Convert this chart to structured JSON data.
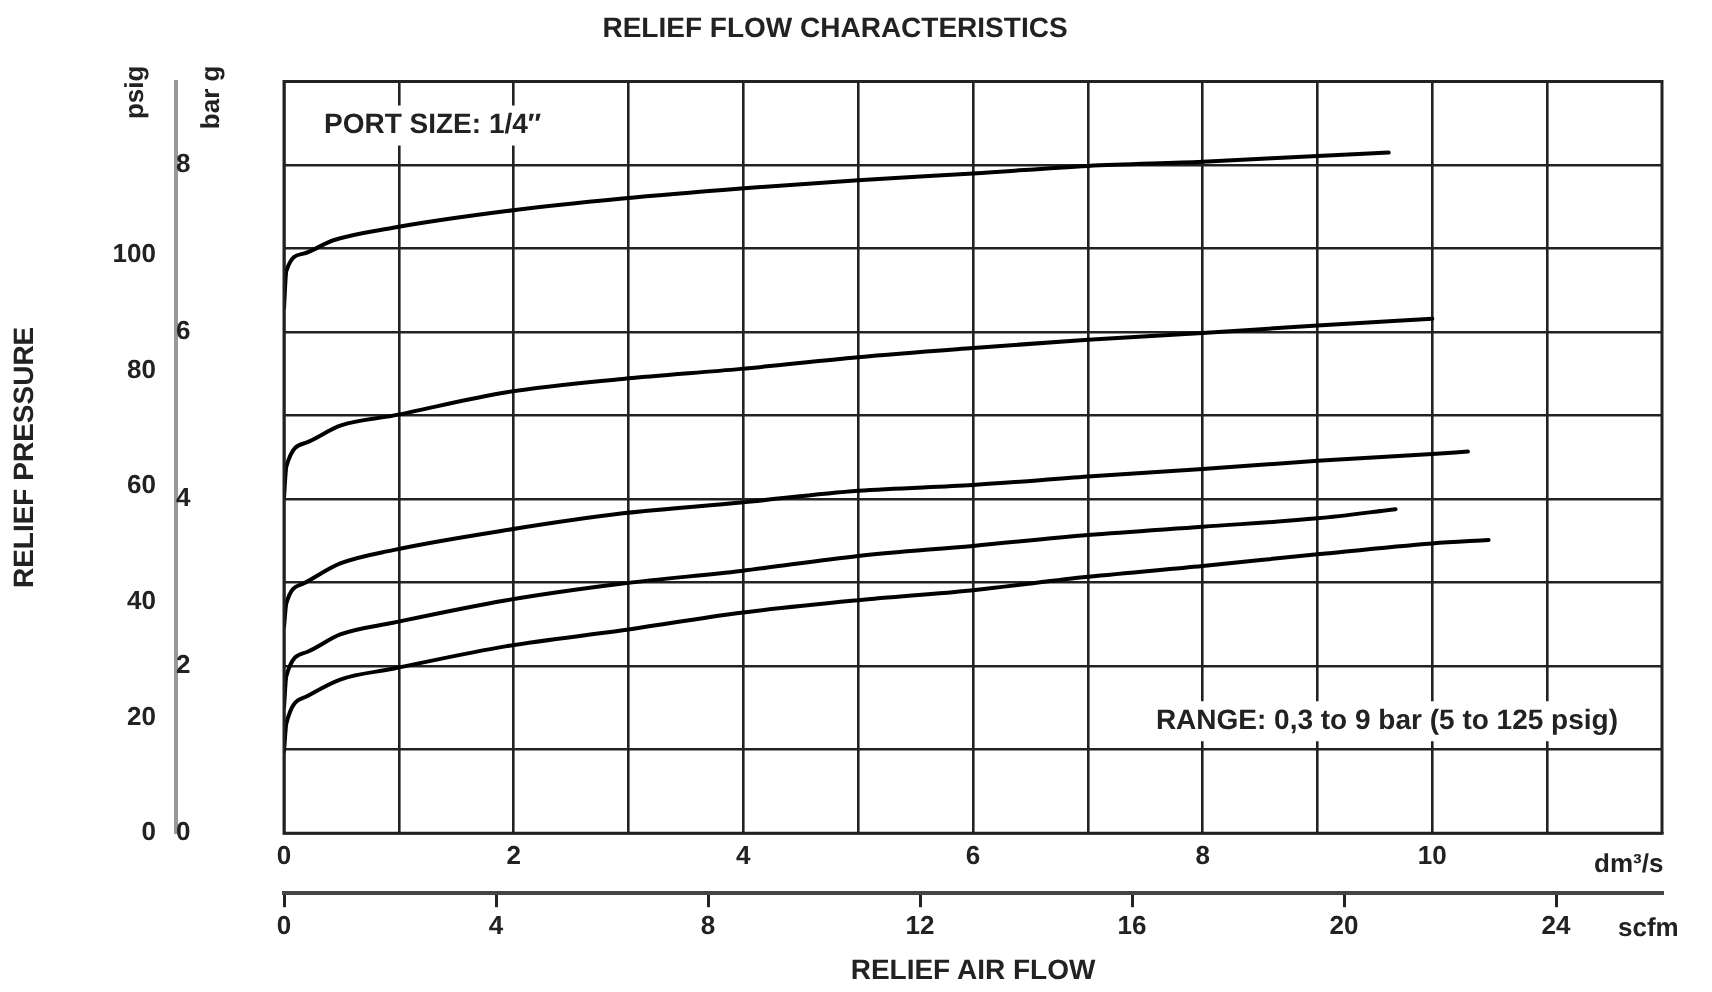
{
  "chart_data": {
    "type": "line",
    "title": "RELIEF FLOW CHARACTERISTICS",
    "xlabel": "RELIEF AIR FLOW",
    "ylabel": "RELIEF PRESSURE",
    "annotations": [
      "psig",
      "bar g",
      "dm³/s",
      "scfm",
      "PORT SIZE: 1/4″",
      "RANGE: 0,3 to 9 bar (5 to 125 psig)"
    ],
    "series": [
      {
        "color": "#000000",
        "axis": "y2",
        "x": [
          0,
          0.02,
          0.17,
          0.43,
          0.95,
          1.94,
          2.95,
          3.98,
          5,
          6,
          7,
          8,
          9,
          9.62
        ],
        "values": [
          6.29,
          6.73,
          6.94,
          7.1,
          7.25,
          7.45,
          7.6,
          7.72,
          7.82,
          7.9,
          7.99,
          8.04,
          8.11,
          8.15
        ]
      },
      {
        "color": "#000000",
        "axis": "y2",
        "x": [
          0,
          0.02,
          0.2,
          0.49,
          0.95,
          1.94,
          2.95,
          3.98,
          5,
          6,
          7,
          8,
          9,
          10
        ],
        "values": [
          4.02,
          4.39,
          4.68,
          4.88,
          5,
          5.28,
          5.44,
          5.56,
          5.7,
          5.81,
          5.91,
          5.99,
          6.08,
          6.16
        ]
      },
      {
        "color": "#000000",
        "axis": "y2",
        "x": [
          0,
          0.02,
          0.17,
          0.49,
          0.95,
          1.94,
          2.95,
          3.98,
          5,
          6,
          7,
          8,
          9,
          10,
          10.31
        ],
        "values": [
          2.47,
          2.75,
          2.99,
          3.23,
          3.39,
          3.63,
          3.83,
          3.96,
          4.1,
          4.17,
          4.27,
          4.36,
          4.46,
          4.54,
          4.57
        ]
      },
      {
        "color": "#000000",
        "axis": "y2",
        "x": [
          0,
          0.02,
          0.2,
          0.49,
          0.95,
          1.94,
          2.95,
          3.98,
          5,
          6,
          7,
          8,
          9,
          9.68
        ],
        "values": [
          1.51,
          1.88,
          2.17,
          2.38,
          2.52,
          2.79,
          2.99,
          3.14,
          3.32,
          3.44,
          3.57,
          3.67,
          3.77,
          3.88
        ]
      },
      {
        "color": "#000000",
        "axis": "y2",
        "x": [
          0,
          0.02,
          0.2,
          0.49,
          0.95,
          1.94,
          2.95,
          3.98,
          5,
          6,
          7,
          8,
          9,
          10,
          10.49
        ],
        "values": [
          0.98,
          1.31,
          1.64,
          1.84,
          1.97,
          2.24,
          2.43,
          2.64,
          2.79,
          2.91,
          3.07,
          3.2,
          3.34,
          3.47,
          3.51
        ]
      }
    ],
    "xlim": [
      0,
      12
    ],
    "xticks": [
      0,
      {
        "value": 1,
        "label": null
      },
      2,
      {
        "value": 3,
        "label": null
      },
      4,
      {
        "value": 5,
        "label": null
      },
      6,
      {
        "value": 7,
        "label": null
      },
      8,
      {
        "value": 9,
        "label": null
      },
      10,
      {
        "value": 11,
        "label": null
      }
    ],
    "x2lim": [
      0,
      26
    ],
    "x2ticks": [
      0,
      4,
      8,
      12,
      16,
      20,
      24
    ],
    "ylim": [
      0,
      130
    ],
    "yticks": [
      0,
      20,
      40,
      60,
      80,
      100
    ],
    "y2lim": [
      0,
      9
    ],
    "y2ticks": [
      0,
      {
        "value": 1,
        "label": null
      },
      2,
      {
        "value": 3,
        "label": null
      },
      4,
      {
        "value": 5,
        "label": null
      },
      6,
      {
        "value": 7,
        "label": null
      },
      8
    ],
    "grid": true,
    "legend": false,
    "marker": "none",
    "line_style": "solid"
  }
}
